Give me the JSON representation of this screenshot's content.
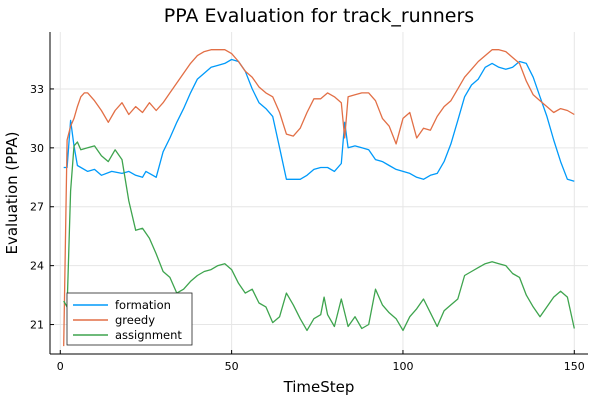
{
  "chart_data": {
    "type": "line",
    "title": "PPA Evaluation for track_runners",
    "xlabel": "TimeStep",
    "ylabel": "Evaluation (PPA)",
    "xlim": [
      -3,
      154
    ],
    "ylim": [
      19.5,
      35.9
    ],
    "xticks": [
      0,
      50,
      100,
      150
    ],
    "yticks": [
      21,
      24,
      27,
      30,
      33
    ],
    "grid": true,
    "legend_position": "bottom-left",
    "series": [
      {
        "name": "formation",
        "color": "#009AFA",
        "x": [
          1,
          2,
          3,
          4,
          5,
          8,
          10,
          12,
          15,
          18,
          20,
          22,
          24,
          25,
          27,
          28,
          30,
          32,
          34,
          36,
          38,
          40,
          42,
          44,
          46,
          48,
          50,
          52,
          54,
          56,
          58,
          60,
          62,
          64,
          66,
          68,
          70,
          72,
          74,
          76,
          78,
          80,
          82,
          83,
          84,
          86,
          88,
          90,
          92,
          94,
          96,
          98,
          100,
          102,
          104,
          106,
          108,
          110,
          112,
          114,
          116,
          118,
          120,
          122,
          124,
          126,
          128,
          130,
          132,
          134,
          136,
          138,
          140,
          142,
          144,
          146,
          148,
          150
        ],
        "y": [
          29.0,
          29.0,
          31.4,
          30.1,
          29.1,
          28.8,
          28.9,
          28.6,
          28.8,
          28.7,
          28.8,
          28.6,
          28.5,
          28.8,
          28.6,
          28.5,
          29.8,
          30.5,
          31.3,
          32.0,
          32.8,
          33.5,
          33.8,
          34.1,
          34.2,
          34.3,
          34.5,
          34.4,
          33.9,
          33.0,
          32.3,
          32.0,
          31.6,
          30.0,
          28.4,
          28.4,
          28.4,
          28.6,
          28.9,
          29.0,
          29.0,
          28.8,
          29.2,
          31.3,
          30.0,
          30.1,
          30.0,
          29.9,
          29.4,
          29.3,
          29.1,
          28.9,
          28.8,
          28.7,
          28.5,
          28.4,
          28.6,
          28.7,
          29.3,
          30.2,
          31.4,
          32.6,
          33.2,
          33.5,
          34.1,
          34.3,
          34.1,
          34.0,
          34.1,
          34.4,
          34.3,
          33.6,
          32.6,
          31.6,
          30.4,
          29.3,
          28.4,
          28.3
        ]
      },
      {
        "name": "greedy",
        "color": "#E26F46",
        "x": [
          1,
          2,
          3,
          4,
          5,
          6,
          7,
          8,
          10,
          12,
          14,
          16,
          18,
          20,
          22,
          24,
          26,
          28,
          30,
          32,
          34,
          36,
          38,
          40,
          42,
          44,
          46,
          48,
          50,
          52,
          54,
          56,
          58,
          60,
          62,
          64,
          66,
          68,
          70,
          72,
          74,
          76,
          78,
          80,
          82,
          83,
          84,
          86,
          88,
          90,
          92,
          94,
          96,
          98,
          100,
          102,
          104,
          106,
          108,
          110,
          112,
          114,
          116,
          118,
          120,
          122,
          124,
          126,
          128,
          130,
          132,
          134,
          136,
          138,
          140,
          142,
          144,
          146,
          148,
          150
        ],
        "y": [
          19.9,
          30.4,
          31.1,
          31.5,
          32.1,
          32.6,
          32.8,
          32.8,
          32.4,
          31.9,
          31.3,
          31.9,
          32.3,
          31.7,
          32.1,
          31.8,
          32.3,
          31.9,
          32.3,
          32.8,
          33.3,
          33.8,
          34.3,
          34.7,
          34.9,
          35.0,
          35.0,
          35.0,
          34.8,
          34.4,
          33.9,
          33.6,
          33.1,
          32.8,
          32.6,
          31.8,
          30.7,
          30.6,
          31.0,
          31.8,
          32.5,
          32.5,
          32.8,
          32.6,
          32.3,
          30.5,
          32.6,
          32.7,
          32.8,
          32.8,
          32.4,
          31.5,
          31.1,
          30.2,
          31.5,
          31.8,
          30.5,
          31.0,
          30.9,
          31.6,
          32.1,
          32.4,
          33.0,
          33.6,
          34.0,
          34.4,
          34.7,
          35.0,
          35.0,
          34.9,
          34.6,
          34.3,
          33.4,
          32.7,
          32.4,
          32.1,
          31.8,
          32.0,
          31.9,
          31.7
        ]
      },
      {
        "name": "assignment",
        "color": "#3EA44E",
        "x": [
          1,
          2,
          3,
          4,
          5,
          6,
          8,
          10,
          12,
          14,
          16,
          18,
          20,
          22,
          24,
          26,
          28,
          30,
          32,
          34,
          36,
          38,
          40,
          42,
          44,
          46,
          48,
          50,
          52,
          54,
          56,
          58,
          60,
          62,
          64,
          66,
          68,
          70,
          72,
          74,
          76,
          77,
          78,
          80,
          82,
          84,
          86,
          88,
          90,
          92,
          94,
          96,
          98,
          100,
          102,
          104,
          106,
          108,
          110,
          112,
          114,
          116,
          118,
          120,
          122,
          124,
          126,
          128,
          130,
          132,
          134,
          136,
          138,
          140,
          142,
          144,
          146,
          148,
          150
        ],
        "y": [
          22.2,
          21.9,
          27.8,
          30.1,
          30.3,
          29.9,
          30.0,
          30.1,
          29.6,
          29.3,
          29.9,
          29.4,
          27.3,
          25.8,
          25.9,
          25.4,
          24.6,
          23.7,
          23.4,
          22.6,
          22.8,
          23.2,
          23.5,
          23.7,
          23.8,
          24.0,
          24.1,
          23.8,
          23.1,
          22.6,
          22.8,
          22.1,
          21.9,
          21.1,
          21.4,
          22.6,
          22.0,
          21.3,
          20.7,
          21.3,
          21.5,
          22.4,
          21.5,
          20.9,
          22.3,
          20.9,
          21.4,
          20.8,
          21.0,
          22.8,
          22.0,
          21.6,
          21.3,
          20.7,
          21.4,
          21.8,
          22.3,
          21.6,
          20.9,
          21.7,
          22.0,
          22.3,
          23.5,
          23.7,
          23.9,
          24.1,
          24.2,
          24.1,
          24.0,
          23.6,
          23.4,
          22.5,
          21.9,
          21.4,
          21.9,
          22.4,
          22.7,
          22.4,
          20.8
        ]
      }
    ]
  }
}
